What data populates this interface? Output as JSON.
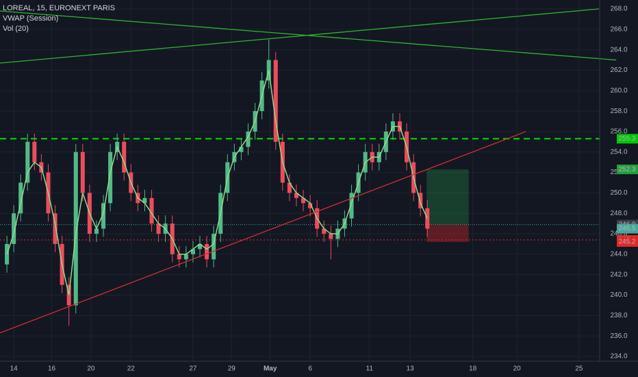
{
  "chart_data": {
    "type": "candlestick",
    "title": "LOREAL, 15, EURONEXT PARIS",
    "indicators": [
      "VWAP (Session)",
      "Vol (20)"
    ],
    "up_color": "#53b987",
    "down_color": "#eb4d5c",
    "vwap_color": "#8fd98f",
    "open": [
      243,
      245,
      248,
      251,
      255,
      253,
      252,
      248,
      245,
      241,
      239,
      254,
      250,
      246,
      246.5,
      249,
      254,
      255,
      252,
      250,
      249,
      249.5,
      247,
      246,
      247,
      244,
      243.5,
      244,
      244.5,
      245,
      243.5,
      246,
      250,
      253,
      254,
      254.5,
      256,
      258,
      261,
      263,
      255,
      251,
      250,
      249.5,
      249,
      248.5,
      246.5,
      246,
      245.5,
      246.5,
      247.5,
      250,
      252,
      254,
      253,
      254,
      256,
      257,
      256,
      253,
      250,
      248.5
    ],
    "high": [
      245.8,
      248.8,
      251.8,
      255.8,
      255.8,
      253.8,
      252.8,
      248.8,
      245.8,
      241.8,
      254.8,
      254.8,
      250.8,
      247.3,
      249.8,
      254.8,
      255.8,
      255.8,
      252.8,
      250.8,
      250.3,
      250.3,
      247.8,
      247.8,
      247.8,
      244.8,
      244.8,
      245.3,
      245.8,
      245.8,
      246.8,
      250.8,
      253.8,
      254.8,
      255.3,
      256.8,
      258.8,
      261.8,
      265,
      263.8,
      255.8,
      251.8,
      250.8,
      250.3,
      249.8,
      249.3,
      247.3,
      246.8,
      247.3,
      248.3,
      250.8,
      252.8,
      254.8,
      254.8,
      254.8,
      256.8,
      257.8,
      257.8,
      256.8,
      253.8,
      250.8,
      249.3
    ],
    "low": [
      242.2,
      244.2,
      247.2,
      250.2,
      252.2,
      251.2,
      247.2,
      244.2,
      240.2,
      237,
      238.2,
      249.2,
      245.2,
      245.2,
      245.7,
      248.2,
      253.2,
      251.2,
      249.2,
      248.2,
      248.2,
      246.2,
      245.2,
      245.2,
      243.2,
      242.7,
      242.7,
      243.2,
      243.7,
      242.7,
      242.7,
      245.2,
      249.2,
      252.2,
      253.2,
      253.7,
      255.2,
      257.2,
      260.2,
      254.2,
      250.2,
      249.2,
      248.7,
      248.2,
      247.7,
      245.7,
      245.2,
      243.5,
      244.7,
      245.7,
      246.7,
      249.2,
      251.2,
      252.2,
      252.2,
      253.2,
      255.2,
      255.2,
      252.2,
      249.2,
      247.7,
      245.7
    ],
    "close": [
      245,
      248,
      251,
      255,
      253,
      252,
      248,
      245,
      241,
      239,
      254,
      250,
      246,
      246.5,
      249,
      254,
      255,
      252,
      250,
      249,
      249.5,
      247,
      246,
      247,
      244,
      243.5,
      244,
      244.5,
      245,
      243.5,
      246,
      250,
      253,
      254,
      254.5,
      256,
      258,
      261,
      263,
      255,
      251,
      250,
      249.5,
      249,
      248.5,
      246.5,
      246,
      245.5,
      246.5,
      247.5,
      250,
      252,
      254,
      253,
      254,
      256,
      257,
      256,
      253,
      250,
      248.5,
      246.5
    ],
    "vwap": [
      244,
      246,
      249,
      252,
      253,
      252.5,
      250,
      247,
      243,
      240,
      246,
      250,
      248,
      246.5,
      248,
      252,
      254.5,
      253,
      251,
      249.5,
      249,
      248,
      247,
      246.5,
      245.5,
      244,
      244,
      244.5,
      245,
      244.5,
      245,
      248,
      251.5,
      253.5,
      254.5,
      255.5,
      257,
      259.5,
      262,
      257,
      253,
      251,
      250,
      249.5,
      249,
      247.5,
      246.5,
      246,
      246,
      247,
      249,
      251,
      253,
      253.5,
      253.5,
      255,
      256.5,
      256.5,
      254.5,
      251.5,
      249,
      247.5
    ],
    "xlim": [
      -1,
      86
    ],
    "xticks": [
      {
        "value": 1,
        "label": "14"
      },
      {
        "value": 6.5,
        "label": "16"
      },
      {
        "value": 12.2,
        "label": "20"
      },
      {
        "value": 18,
        "label": "22"
      },
      {
        "value": 27,
        "label": "27"
      },
      {
        "value": 32.6,
        "label": "29"
      },
      {
        "value": 38.2,
        "label": "May"
      },
      {
        "value": 44,
        "label": "6"
      },
      {
        "value": 52.6,
        "label": "11"
      },
      {
        "value": 58.5,
        "label": "13"
      },
      {
        "value": 67.6,
        "label": "18"
      },
      {
        "value": 74,
        "label": "20"
      },
      {
        "value": 83,
        "label": "25"
      }
    ],
    "ylim": [
      234,
      268
    ],
    "yticks": [
      {
        "value": 234,
        "label": "234.0"
      },
      {
        "value": 236,
        "label": "236.0"
      },
      {
        "value": 238,
        "label": "238.0"
      },
      {
        "value": 240,
        "label": "240.0"
      },
      {
        "value": 242,
        "label": "242.0"
      },
      {
        "value": 244,
        "label": "244.0"
      },
      {
        "value": 246,
        "label": "246.0"
      },
      {
        "value": 248,
        "label": "248.0"
      },
      {
        "value": 250,
        "label": "250.0"
      },
      {
        "value": 252,
        "label": "252.0"
      },
      {
        "value": 254,
        "label": "254.0"
      },
      {
        "value": 256,
        "label": "256.0"
      },
      {
        "value": 258,
        "label": "258.0"
      },
      {
        "value": 260,
        "label": "260.0"
      },
      {
        "value": 262,
        "label": "262.0"
      },
      {
        "value": 264,
        "label": "264.0"
      },
      {
        "value": 266,
        "label": "266.0"
      },
      {
        "value": 268,
        "label": "268.0"
      }
    ],
    "grid": true,
    "lines": [
      {
        "x": [
          -1,
          75.3
        ],
        "y": [
          236.3,
          256
        ],
        "color": "#d32f2f"
      },
      {
        "x": [
          -1,
          88.4
        ],
        "y": [
          267.8,
          263
        ],
        "color": "#2fb52f"
      },
      {
        "x": [
          -1,
          85.9
        ],
        "y": [
          262.7,
          268
        ],
        "color": "#2fb52f"
      }
    ],
    "hlines": [
      {
        "value": 255.3,
        "color": "#00e000",
        "dash": "9 6",
        "width": 2
      },
      {
        "value": 246.9,
        "color": "#4aa89a",
        "dash": "1 2",
        "width": 1
      },
      {
        "value": 245.4,
        "color": "#e03030",
        "dash": "2 3",
        "width": 1
      }
    ],
    "position": {
      "x": [
        60.9,
        67
      ],
      "target": 252.3,
      "entry": 246.9,
      "stop": 245.2
    },
    "markers": [
      {
        "value": 255.3,
        "color": "#00c800",
        "text_color": "#000"
      },
      {
        "value": 252.3,
        "color": "#22a03c",
        "text_color": "#fff"
      },
      {
        "value": 246.9,
        "color": "#3a3d46",
        "text_color": "#ddd"
      },
      {
        "value": 246.5,
        "color": "#45a89a",
        "text_color": "#fff"
      },
      {
        "value": 245.4,
        "color": "#e02828",
        "text_color": "#fff"
      },
      {
        "value": 245.2,
        "color": "#e02828",
        "text_color": "#fff"
      }
    ]
  }
}
